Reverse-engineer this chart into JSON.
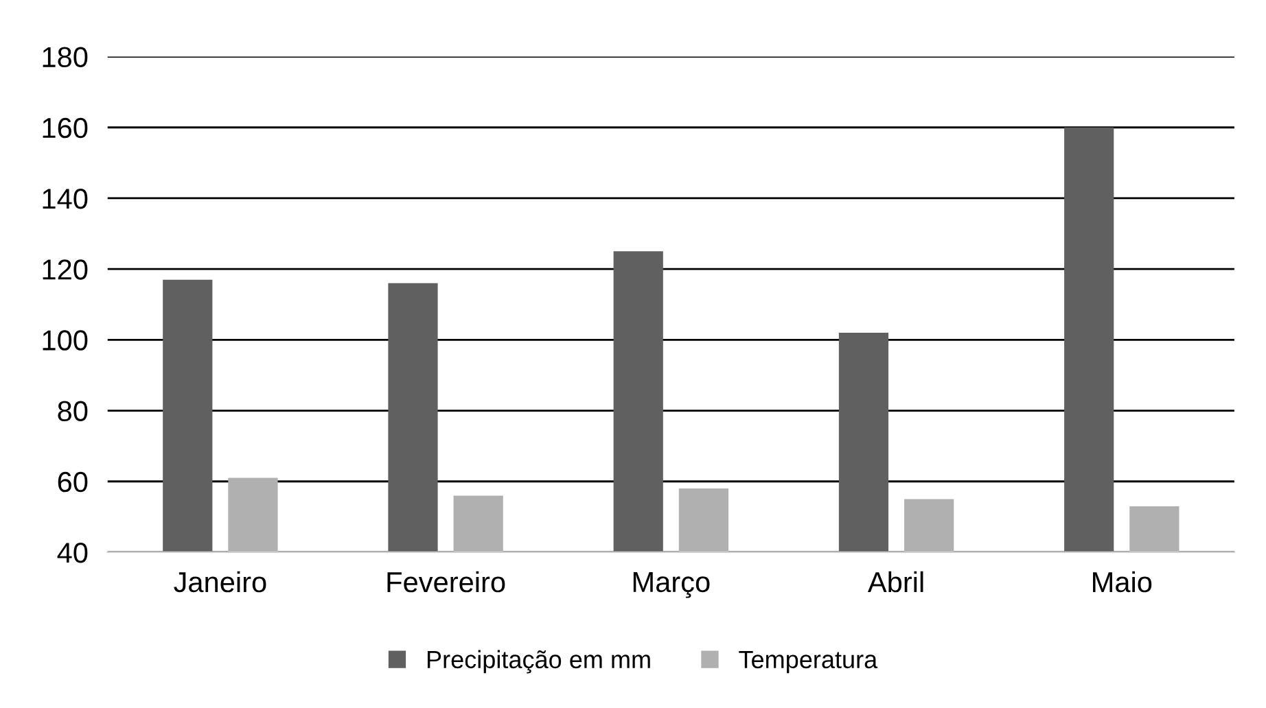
{
  "chart_data": {
    "type": "bar",
    "categories": [
      "Janeiro",
      "Fevereiro",
      "Março",
      "Abril",
      "Maio"
    ],
    "series": [
      {
        "name": "Precipitação em mm",
        "color": "#606060",
        "values": [
          117,
          116,
          125,
          102,
          160
        ]
      },
      {
        "name": "Temperatura",
        "color": "#b0b0b0",
        "values": [
          61,
          56,
          58,
          55,
          53
        ]
      }
    ],
    "ylim": [
      40,
      180
    ],
    "yticks": [
      40,
      60,
      80,
      100,
      120,
      140,
      160,
      180
    ],
    "grid": "y",
    "legend": "bottom"
  }
}
